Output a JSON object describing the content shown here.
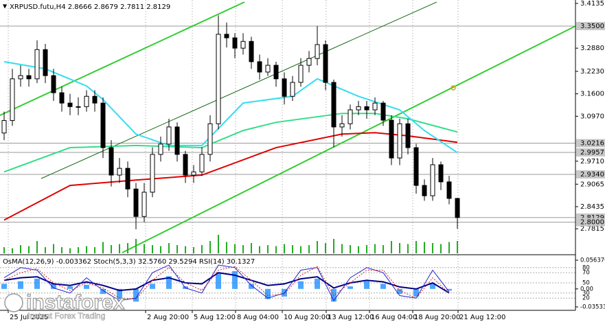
{
  "chart_data": {
    "type": "candlestick",
    "title": "XRPUSD.futu,H4 2.8666 2.8679 2.7811 2.8129",
    "xlim": [
      -0.5,
      69.33
    ],
    "ylim": [
      2.7106,
      3.4231
    ],
    "open": [
      3.05,
      3.085,
      3.202,
      3.211,
      3.202,
      3.284,
      3.211,
      3.163,
      3.134,
      3.124,
      3.124,
      3.153,
      3.134,
      3.009,
      2.932,
      2.951,
      2.893,
      2.816,
      2.884,
      2.99,
      3.019,
      3.067,
      2.99,
      2.932,
      2.941,
      2.99,
      3.076,
      3.327,
      3.317,
      3.288,
      3.307,
      3.25,
      3.221,
      3.24,
      3.202,
      3.153,
      3.192,
      3.24,
      3.259,
      3.298,
      3.192,
      3.067,
      3.076,
      3.115,
      3.124,
      3.115,
      3.134,
      3.086,
      2.98,
      3.076,
      3.009,
      2.903,
      2.874,
      2.961,
      2.913,
      2.8666
    ],
    "high": [
      3.11,
      3.23,
      3.24,
      3.23,
      3.31,
      3.3,
      3.23,
      3.18,
      3.16,
      3.15,
      3.17,
      3.17,
      3.15,
      3.03,
      2.98,
      2.97,
      2.91,
      2.91,
      3.01,
      3.04,
      3.09,
      3.08,
      3.0,
      2.96,
      3.01,
      3.1,
      3.38,
      3.36,
      3.33,
      3.33,
      3.32,
      3.27,
      3.26,
      3.25,
      3.22,
      3.21,
      3.26,
      3.28,
      3.35,
      3.31,
      3.2,
      3.1,
      3.13,
      3.14,
      3.14,
      3.15,
      3.14,
      3.1,
      3.09,
      3.09,
      3.02,
      2.92,
      2.98,
      2.97,
      2.93,
      2.8679
    ],
    "low": [
      3.03,
      3.07,
      3.18,
      3.18,
      3.19,
      3.19,
      3.14,
      3.11,
      3.1,
      3.1,
      3.11,
      3.11,
      2.98,
      2.9,
      2.91,
      2.87,
      2.78,
      2.8,
      2.87,
      2.97,
      3.0,
      2.97,
      2.91,
      2.91,
      2.93,
      2.97,
      3.06,
      3.29,
      3.26,
      3.27,
      3.23,
      3.2,
      3.21,
      3.18,
      3.13,
      3.14,
      3.18,
      3.22,
      3.24,
      3.17,
      3.01,
      3.04,
      3.06,
      3.1,
      3.09,
      3.1,
      3.07,
      2.96,
      2.96,
      2.99,
      2.88,
      2.86,
      2.86,
      2.89,
      2.85,
      2.7811
    ],
    "close": [
      3.085,
      3.202,
      3.211,
      3.202,
      3.284,
      3.211,
      3.163,
      3.134,
      3.124,
      3.124,
      3.153,
      3.134,
      3.009,
      2.932,
      2.951,
      2.893,
      2.816,
      2.884,
      2.99,
      3.019,
      3.067,
      2.99,
      2.932,
      2.941,
      2.99,
      3.076,
      3.327,
      3.317,
      3.288,
      3.307,
      3.25,
      3.221,
      3.24,
      3.202,
      3.153,
      3.192,
      3.24,
      3.259,
      3.298,
      3.192,
      3.067,
      3.076,
      3.115,
      3.124,
      3.115,
      3.134,
      3.086,
      2.98,
      3.076,
      3.009,
      2.903,
      2.874,
      2.961,
      2.913,
      2.8666,
      2.8129
    ],
    "up_color": "#ffffff",
    "down_color": "#000000",
    "volumes": [
      30,
      25,
      40,
      35,
      60,
      30,
      45,
      30,
      25,
      30,
      35,
      30,
      55,
      40,
      45,
      50,
      70,
      45,
      40,
      35,
      50,
      40,
      35,
      30,
      40,
      60,
      90,
      55,
      45,
      40,
      50,
      35,
      40,
      35,
      45,
      40,
      35,
      40,
      60,
      50,
      70,
      45,
      40,
      35,
      40,
      45,
      40,
      60,
      50,
      45,
      60,
      55,
      50,
      45,
      55,
      60
    ],
    "volume_lim": [
      0,
      100
    ],
    "volume_color": "#22aa22",
    "series": [
      {
        "color": "#e00000",
        "x": [
          0,
          8,
          16,
          24,
          33,
          41,
          45,
          49,
          55
        ],
        "values": [
          2.806,
          2.903,
          2.918,
          2.932,
          3.009,
          3.047,
          3.051,
          3.042,
          3.024
        ]
      },
      {
        "color": "#33dd88",
        "x": [
          0,
          8,
          16,
          24,
          29,
          33,
          41,
          45,
          49,
          55
        ],
        "values": [
          2.941,
          3.009,
          3.015,
          3.009,
          3.057,
          3.08,
          3.105,
          3.105,
          3.09,
          3.053
        ]
      },
      {
        "color": "#33ddee",
        "x": [
          0,
          5,
          10,
          12,
          16,
          20,
          24,
          29,
          35,
          38,
          43,
          48,
          51,
          55
        ],
        "values": [
          3.25,
          3.23,
          3.182,
          3.144,
          3.047,
          3.015,
          3.015,
          3.134,
          3.153,
          3.202,
          3.153,
          3.115,
          3.057,
          2.995
        ]
      }
    ],
    "yticks": [
      3.4135,
      {
        "value": 3.288,
        "label": "3.2880"
      },
      {
        "value": 3.223,
        "label": "3.2230"
      },
      {
        "value": 3.16,
        "label": "3.1600"
      },
      {
        "value": 3.097,
        "label": "3.0970"
      },
      {
        "value": 2.971,
        "label": "2.9710"
      },
      2.9065,
      2.8435,
      2.7815
    ],
    "levels": [
      {
        "value": 3.35,
        "label": "3.3500"
      },
      3.0216,
      2.9957,
      {
        "value": 2.934,
        "label": "2.9340"
      },
      2.8129,
      {
        "value": 2.8,
        "label": "2.8000"
      }
    ],
    "xticks": [
      {
        "value": 0.5,
        "label": "25 Jul 2025"
      },
      {
        "value": 17.17,
        "label": "2 Aug 20:00"
      },
      {
        "value": 22.83,
        "label": "5 Aug 12:00"
      },
      {
        "value": 28.08,
        "label": "8 Aug 04:00"
      },
      {
        "value": 33.75,
        "label": "10 Aug 20:00"
      },
      {
        "value": 39.08,
        "label": "13 Aug 12:00"
      },
      {
        "value": 44.33,
        "label": "16 Aug 04:00"
      },
      {
        "value": 49.58,
        "label": "18 Aug 20:00"
      },
      {
        "value": 55.08,
        "label": "21 Aug 12:00"
      }
    ],
    "grid": true,
    "indicators": {
      "title": "OsMA(12,26,9) -0.003362 Stoch(5,3,3) 32.5760 29.5294 RSI(14) 30.1327",
      "x": [
        0,
        2,
        4,
        6,
        8,
        10,
        12,
        14,
        16,
        18,
        20,
        22,
        24,
        26,
        28,
        30,
        32,
        34,
        36,
        38,
        40,
        42,
        44,
        46,
        48,
        50,
        52,
        54
      ],
      "osma": [
        0.01,
        0.015,
        0.02,
        0.01,
        0.005,
        0.008,
        -0.01,
        -0.02,
        -0.025,
        0.01,
        0.025,
        0.005,
        0.0,
        0.03,
        0.035,
        0.01,
        -0.02,
        -0.015,
        0.015,
        0.02,
        -0.025,
        0.005,
        0.015,
        0.01,
        -0.01,
        -0.015,
        0.01,
        -0.003362
      ],
      "osma_color": "#1e90ff",
      "osma_ylim": [
        -0.03533,
        0.05637
      ],
      "osma_ticks": [
        {
          "value": 0.05637,
          "label": "0.056370"
        },
        {
          "value": 0,
          "label": "0.00"
        },
        {
          "value": -0.03533,
          "label": "-0.035330"
        }
      ],
      "stoch_main": [
        60,
        80,
        75,
        40,
        30,
        60,
        35,
        15,
        20,
        70,
        85,
        40,
        30,
        85,
        80,
        45,
        20,
        30,
        75,
        80,
        15,
        60,
        80,
        70,
        25,
        20,
        75,
        32.576
      ],
      "stoch_signal": [
        55,
        70,
        78,
        50,
        35,
        50,
        40,
        20,
        18,
        55,
        80,
        50,
        35,
        75,
        82,
        55,
        25,
        28,
        65,
        82,
        25,
        50,
        75,
        75,
        35,
        20,
        60,
        29.5294
      ],
      "rsi": [
        55,
        60,
        62,
        48,
        45,
        52,
        45,
        35,
        38,
        55,
        60,
        50,
        48,
        70,
        65,
        55,
        45,
        48,
        58,
        62,
        40,
        50,
        55,
        52,
        42,
        38,
        50,
        30.1327
      ],
      "stoch_main_color": "#2222cc",
      "stoch_signal_color": "#cc2222",
      "rsi_color": "#000088",
      "osc_ylim": [
        0,
        100
      ],
      "osc_levels": [
        80,
        70,
        50,
        30,
        20
      ]
    },
    "watermark": {
      "brand": "instaforex",
      "tagline": "Instant Forex Trading"
    }
  }
}
